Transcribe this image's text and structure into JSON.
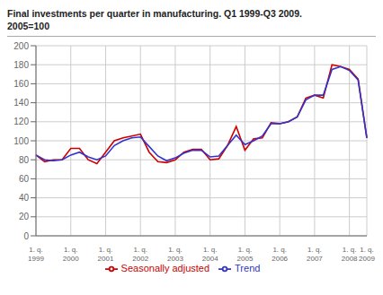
{
  "chart_data": {
    "type": "line",
    "title": "Final investments per quarter in manufacturing. Q1 1999-Q3 2009.",
    "subtitle": "2005=100",
    "categories": [
      "1. q.\n1999",
      null,
      null,
      null,
      "1. q.\n2000",
      null,
      null,
      null,
      "1. q.\n2001",
      null,
      null,
      null,
      "1. q.\n2002",
      null,
      null,
      null,
      "1. q.\n2003",
      null,
      null,
      null,
      "1. q.\n2004",
      null,
      null,
      null,
      "1. q.\n2005",
      null,
      null,
      null,
      "1. q.\n2006",
      null,
      null,
      null,
      "1. q.\n2007",
      null,
      null,
      null,
      "1. q.\n2008",
      null,
      "1. q.\n2009"
    ],
    "series": [
      {
        "name": "Seasonally adjusted",
        "color": "#cc0000",
        "values": [
          85,
          78,
          80,
          80,
          92,
          92,
          80,
          76,
          88,
          100,
          103,
          105,
          107,
          88,
          78,
          77,
          80,
          88,
          91,
          91,
          80,
          81,
          95,
          115,
          90,
          102,
          103,
          119,
          118,
          120,
          125,
          145,
          148,
          145,
          180,
          178,
          175,
          165,
          103
        ]
      },
      {
        "name": "Trend",
        "color": "#3333cc",
        "values": [
          85,
          80,
          79,
          80,
          85,
          88,
          83,
          80,
          84,
          95,
          100,
          103,
          104,
          94,
          84,
          79,
          82,
          87,
          90,
          90,
          83,
          84,
          95,
          106,
          96,
          100,
          105,
          118,
          118,
          120,
          125,
          143,
          148,
          148,
          175,
          178,
          174,
          164,
          103
        ]
      }
    ],
    "ylim": [
      0,
      200
    ],
    "yticks": [
      0,
      20,
      40,
      60,
      80,
      100,
      120,
      140,
      160,
      180,
      200
    ],
    "grid": true,
    "legend": "bottom"
  }
}
